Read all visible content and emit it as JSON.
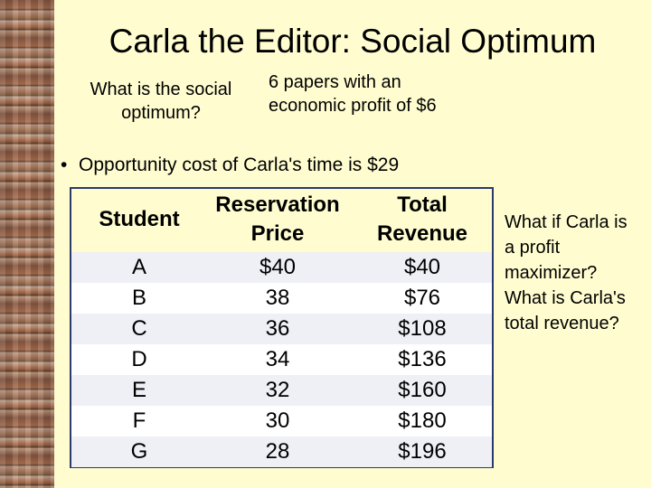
{
  "slide": {
    "title": "Carla the Editor: Social Optimum",
    "question": "What is the social optimum?",
    "papers_note": "6 papers with an economic profit of $6",
    "bullet": "Opportunity cost of Carla's time is $29",
    "side_question": "What if Carla is a profit maximizer? What is Carla's total revenue?"
  },
  "table": {
    "headers": {
      "student": "Student",
      "reservation_price": "Reservation Price",
      "total_revenue": "Total Revenue"
    },
    "rows": [
      {
        "student": "A",
        "price": "$40",
        "revenue": "$40"
      },
      {
        "student": "B",
        "price": "38",
        "revenue": "$76"
      },
      {
        "student": "C",
        "price": "36",
        "revenue": "$108"
      },
      {
        "student": "D",
        "price": "34",
        "revenue": "$136"
      },
      {
        "student": "E",
        "price": "32",
        "revenue": "$160"
      },
      {
        "student": "F",
        "price": "30",
        "revenue": "$180"
      },
      {
        "student": "G",
        "price": "28",
        "revenue": "$196"
      }
    ]
  },
  "colors": {
    "background": "#fffdd0",
    "table_border": "#2b3a6b",
    "row_alt": "#eef0f6"
  }
}
